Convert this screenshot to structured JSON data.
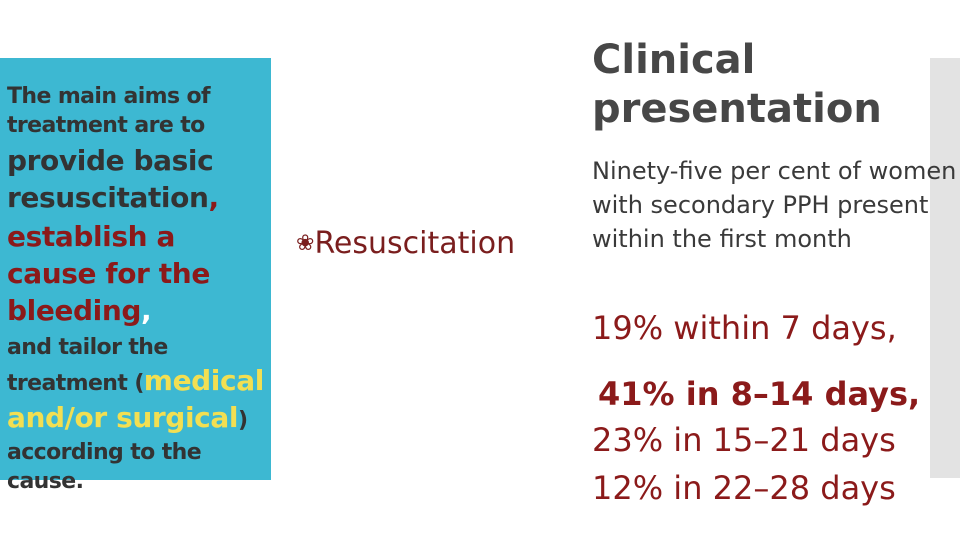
{
  "left_panel": {
    "intro": "The main aims of treatment are to",
    "aim1": "provide basic resuscitation",
    "comma1": ",",
    "aim2": "establish a cause for the bleeding",
    "comma2": ",",
    "text_and": "and ",
    "text_tailor": "tailor the treatment (",
    "treatment_type": "medical and/or surgical",
    "close_paren": ")",
    "outro": "according to the cause."
  },
  "middle": {
    "bullet_icon": "curved-bullet-icon",
    "bullet_glyph": "❀",
    "label": "Resuscitation"
  },
  "right_panel": {
    "title": "Clinical presentation",
    "intro": "Ninety-five per cent of women with secondary PPH present within the first month",
    "stats": [
      "19% within 7 days,",
      "41% in 8–14 days,",
      "23% in 15–21 days",
      "12% in 22–28 days"
    ]
  },
  "colors": {
    "panel": "#3db8d2",
    "emphasis_red": "#8b1a1a",
    "emphasis_yellow": "#f2df52",
    "text_gray": "#333333",
    "side_bar": "#e3e3e3"
  }
}
